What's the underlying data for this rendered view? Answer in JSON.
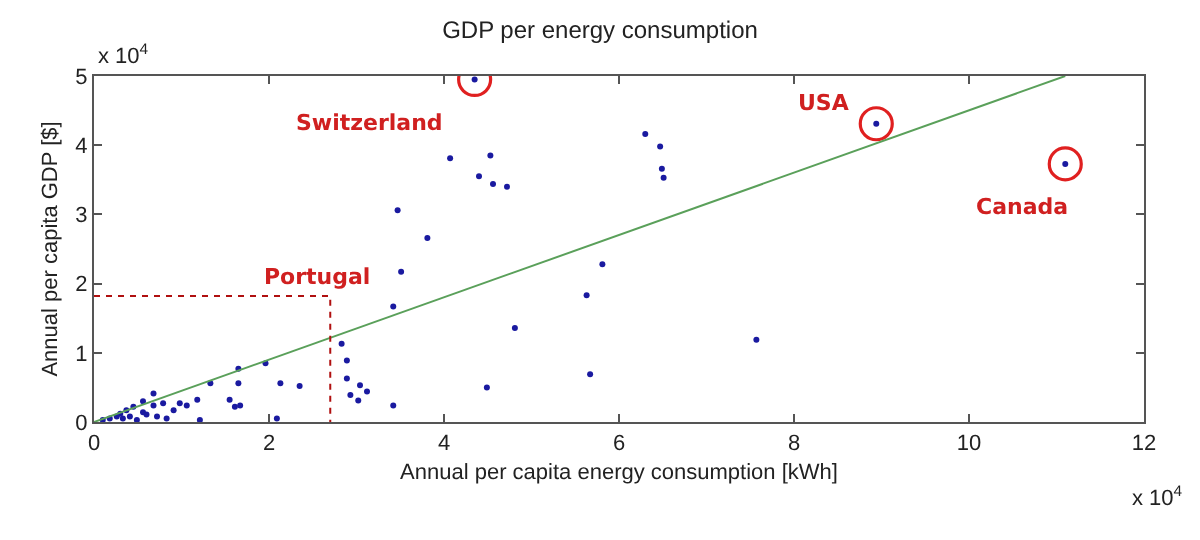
{
  "chart_data": {
    "type": "scatter",
    "title": "GDP per energy consumption",
    "xlabel": "Annual per capita energy consumption [kWh]",
    "ylabel": "Annual per capita GDP [$]",
    "xlim": [
      0,
      12
    ],
    "xticks": [
      0,
      2,
      4,
      6,
      8,
      10,
      12
    ],
    "ylim": [
      0,
      5
    ],
    "yticks": [
      0,
      1,
      2,
      3,
      4,
      5
    ],
    "grid": false,
    "series": [
      {
        "marker": "circle",
        "color": "#1a1aa0",
        "x": [
          4.35,
          8.94,
          11.1,
          6.3,
          6.47,
          6.49,
          6.51,
          4.07,
          4.53,
          4.4,
          4.56,
          4.72,
          3.81,
          3.51,
          5.81,
          5.63,
          4.81,
          5.67,
          4.49,
          7.57,
          3.47,
          3.42,
          2.83,
          2.89,
          2.89,
          3.04,
          3.12,
          2.93,
          3.02,
          3.42,
          1.96,
          2.13,
          2.35,
          2.09,
          1.65,
          1.65,
          1.55,
          1.61,
          1.67,
          1.33,
          1.21,
          1.18,
          1.06,
          0.98,
          0.91,
          0.79,
          0.68,
          0.56,
          0.56,
          0.45,
          0.37,
          0.3,
          0.26,
          0.33,
          0.41,
          0.49,
          0.6,
          0.72,
          0.83,
          0.18,
          0.1,
          0.68
        ],
        "values": [
          4.95,
          4.31,
          3.73,
          4.16,
          3.98,
          3.66,
          3.53,
          3.81,
          3.85,
          3.55,
          3.44,
          3.4,
          2.66,
          2.17,
          2.28,
          1.83,
          1.36,
          0.69,
          0.5,
          1.19,
          3.06,
          1.67,
          1.13,
          0.89,
          0.63,
          0.53,
          0.44,
          0.39,
          0.31,
          0.24,
          0.85,
          0.56,
          0.52,
          0.05,
          0.77,
          0.56,
          0.32,
          0.22,
          0.24,
          0.56,
          0.03,
          0.32,
          0.24,
          0.27,
          0.17,
          0.27,
          0.24,
          0.3,
          0.14,
          0.22,
          0.17,
          0.12,
          0.08,
          0.05,
          0.08,
          0.03,
          0.11,
          0.08,
          0.05,
          0.05,
          0.03,
          0.41
        ]
      },
      {
        "marker": "circle",
        "color": "#e02020",
        "x": [
          4.35,
          8.94,
          11.1
        ],
        "values": [
          4.95,
          4.31,
          3.73
        ]
      },
      {
        "type": "line",
        "marker": "none",
        "color": "#5aa05a",
        "x": [
          0,
          11.1
        ],
        "values": [
          0,
          5
        ]
      },
      {
        "type": "line",
        "marker": "none",
        "color": "#b01010",
        "line_style": "dotted",
        "x": [
          0,
          2.7,
          2.7
        ],
        "values": [
          1.82,
          1.82,
          0
        ]
      }
    ],
    "annotations": [
      {
        "text": "Switzerland",
        "x": 4.35,
        "y": 4.95
      },
      {
        "text": "USA",
        "x": 8.94,
        "y": 4.31
      },
      {
        "text": "Canada",
        "x": 11.1,
        "y": 3.73
      },
      {
        "text": "Portugal",
        "x": 2.7,
        "y": 1.82
      },
      "x 10$^{4}$",
      "x 10$^{4}$"
    ]
  }
}
